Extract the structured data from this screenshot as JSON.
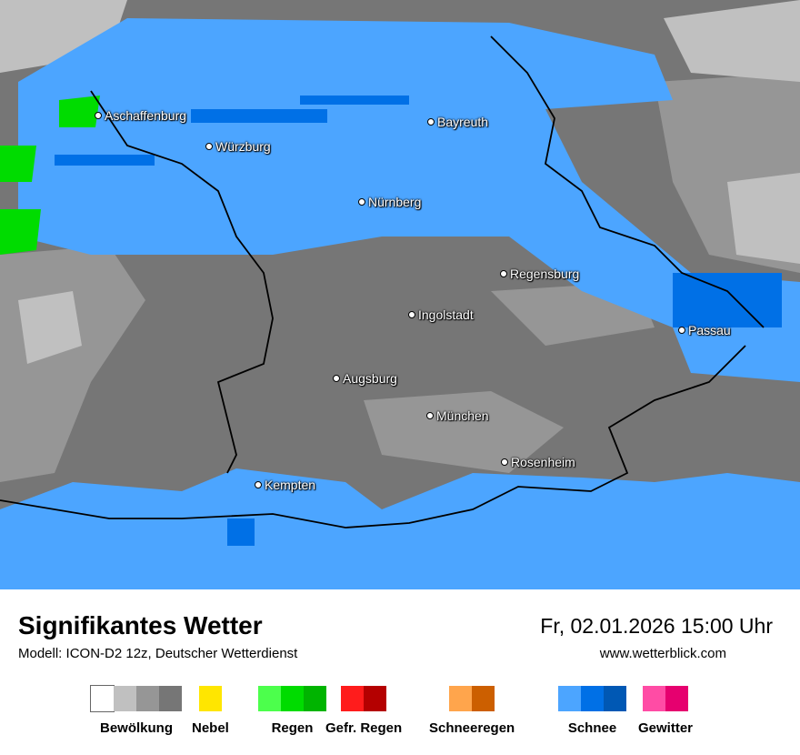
{
  "title": "Signifikantes Wetter",
  "model": "Modell: ICON-D2 12z, Deutscher Wetterdienst",
  "datetime": "Fr, 02.01.2026 15:00 Uhr",
  "website": "www.wetterblick.com",
  "cities": [
    "Aschaffenburg",
    "Würzburg",
    "Bayreuth",
    "Nürnberg",
    "Regensburg",
    "Ingolstadt",
    "Passau",
    "Augsburg",
    "München",
    "Rosenheim",
    "Kempten"
  ],
  "legend": [
    {
      "label": "Bewölkung",
      "colors": [
        "#ffffff",
        "#c0c0c0",
        "#969696",
        "#767676"
      ]
    },
    {
      "label": "Nebel",
      "colors": [
        "#ffe600"
      ]
    },
    {
      "label": "Regen",
      "colors": [
        "#4cff4c",
        "#00dc00",
        "#00b400"
      ]
    },
    {
      "label": "Gefr. Regen",
      "colors": [
        "#ff1c1c",
        "#b40000"
      ]
    },
    {
      "label": "Schneeregen",
      "colors": [
        "#ffa54c",
        "#cc5f00"
      ]
    },
    {
      "label": "Schnee",
      "colors": [
        "#4ca5ff",
        "#0070e6",
        "#0058b4"
      ]
    },
    {
      "label": "Gewitter",
      "colors": [
        "#ff4ca5",
        "#e6006f"
      ]
    }
  ]
}
